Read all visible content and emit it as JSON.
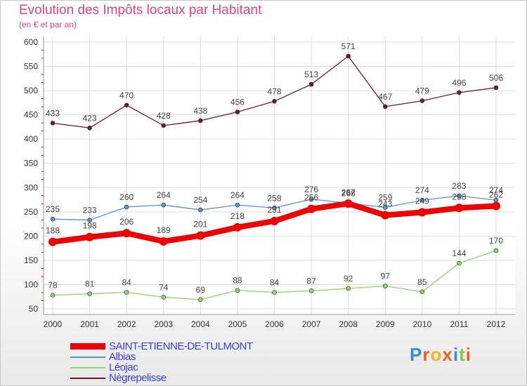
{
  "title": "Evolution des Impôts locaux par Habitant",
  "subtitle": "(en € et par an)",
  "logo": {
    "letters": [
      "P",
      "r",
      "o",
      "x",
      "i",
      "t",
      "i"
    ],
    "colors": [
      "#2f8fd8",
      "#e8641b",
      "#f3b51f",
      "#e8641b",
      "#2f8fd8",
      "#8cc63f",
      "#e8641b"
    ]
  },
  "chart_data": {
    "type": "line",
    "x": [
      "2000",
      "2001",
      "2002",
      "2003",
      "2004",
      "2005",
      "2006",
      "2007",
      "2008",
      "2009",
      "2010",
      "2011",
      "2012"
    ],
    "ylim": [
      50,
      600
    ],
    "yticks": [
      50,
      100,
      150,
      200,
      250,
      300,
      350,
      400,
      450,
      500,
      550,
      600
    ],
    "grid": true,
    "legend": "bottom-left",
    "series": [
      {
        "name": "Nègrepelisse",
        "color": "#6b1e22",
        "thick": false,
        "values": [
          433,
          423,
          470,
          428,
          438,
          456,
          478,
          513,
          571,
          467,
          479,
          496,
          506
        ]
      },
      {
        "name": "Albias",
        "color": "#5b93c8",
        "thick": false,
        "values": [
          235,
          233,
          260,
          264,
          254,
          264,
          258,
          276,
          268,
          259,
          274,
          283,
          274
        ]
      },
      {
        "name": "Léojac",
        "color": "#8fd36a",
        "thick": false,
        "values": [
          78,
          81,
          84,
          74,
          69,
          88,
          84,
          87,
          92,
          97,
          85,
          144,
          170
        ]
      },
      {
        "name": "SAINT-ETIENNE-DE-TULMONT",
        "color": "#ee0000",
        "thick": true,
        "values": [
          188,
          198,
          206,
          189,
          201,
          218,
          231,
          256,
          267,
          243,
          249,
          258,
          262
        ]
      }
    ],
    "legend_order": [
      "SAINT-ETIENNE-DE-TULMONT",
      "Albias",
      "Léojac",
      "Nègrepelisse"
    ]
  }
}
